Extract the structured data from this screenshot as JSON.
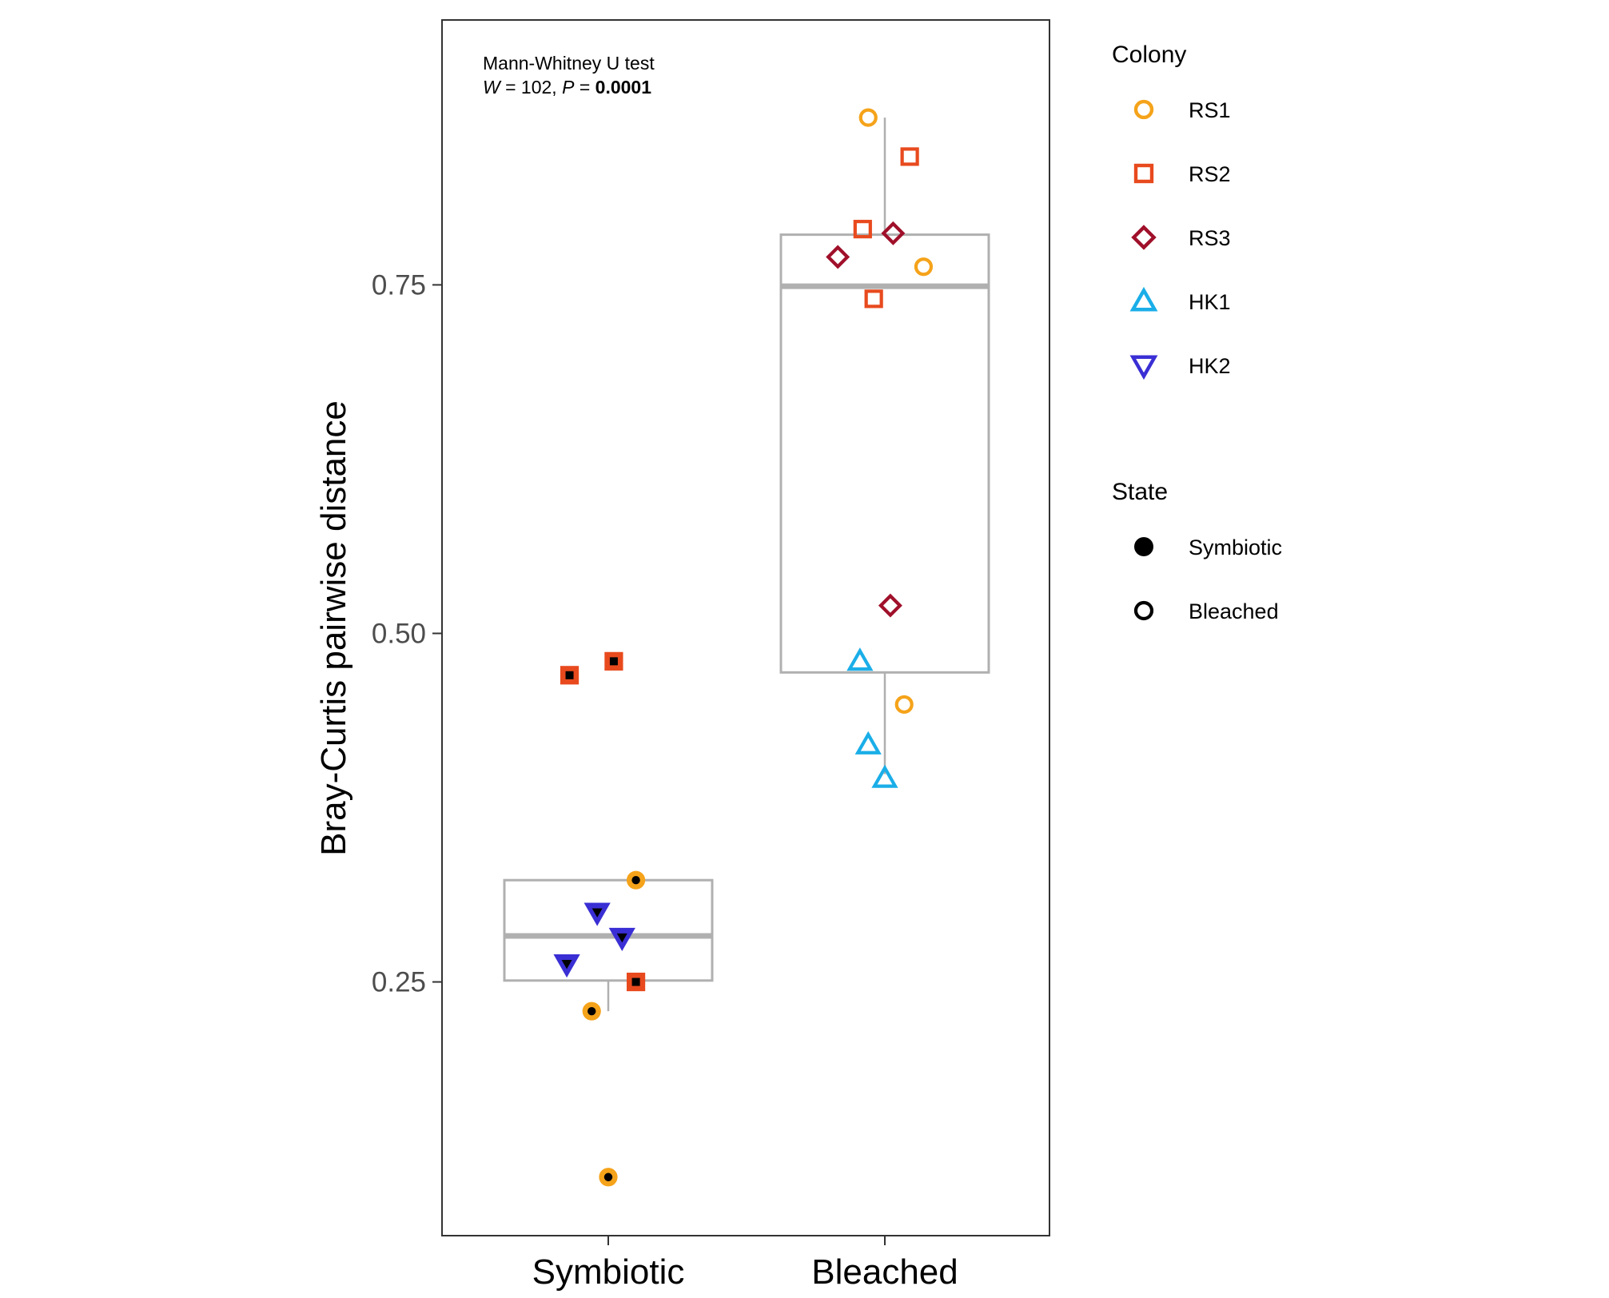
{
  "colors": {
    "RS1": "#F5A31A",
    "RS2": "#E84A1E",
    "RS3": "#A0102A",
    "HK1": "#1AAEE8",
    "HK2": "#3A2FD4",
    "box": "#b0b0b0",
    "axis": "#333333"
  },
  "chart_data": {
    "type": "scatter",
    "subtype": "boxplot-with-jittered-points",
    "ylabel": "Bray-Curtis pairwise distance",
    "xlabel": "",
    "categories": [
      "Symbiotic",
      "Bleached"
    ],
    "ylim": [
      0.068,
      0.94
    ],
    "yticks": [
      0.25,
      0.5,
      0.75
    ],
    "ytick_labels": [
      "0.25",
      "0.50",
      "0.75"
    ],
    "grid": false,
    "annotation": {
      "line1": "Mann-Whitney U test",
      "stat_name": "W",
      "stat_eq": " = 102, ",
      "p_name": "P",
      "p_eq": " = ",
      "p_value": "0.0001"
    },
    "boxes": [
      {
        "category": "Symbiotic",
        "whisker_low": 0.229,
        "q1": 0.251,
        "median": 0.283,
        "q3": 0.323,
        "whisker_high": 0.323
      },
      {
        "category": "Bleached",
        "whisker_low": 0.399,
        "q1": 0.472,
        "median": 0.749,
        "q3": 0.786,
        "whisker_high": 0.87
      }
    ],
    "points": [
      {
        "category": "Symbiotic",
        "colony": "RS2",
        "jitter": -0.14,
        "y": 0.47
      },
      {
        "category": "Symbiotic",
        "colony": "RS2",
        "jitter": 0.02,
        "y": 0.48
      },
      {
        "category": "Symbiotic",
        "colony": "RS1",
        "jitter": 0.1,
        "y": 0.323
      },
      {
        "category": "Symbiotic",
        "colony": "HK2",
        "jitter": -0.04,
        "y": 0.3
      },
      {
        "category": "Symbiotic",
        "colony": "HK2",
        "jitter": 0.05,
        "y": 0.282
      },
      {
        "category": "Symbiotic",
        "colony": "HK2",
        "jitter": -0.15,
        "y": 0.263
      },
      {
        "category": "Symbiotic",
        "colony": "RS2",
        "jitter": 0.1,
        "y": 0.25
      },
      {
        "category": "Symbiotic",
        "colony": "RS1",
        "jitter": -0.06,
        "y": 0.229
      },
      {
        "category": "Symbiotic",
        "colony": "RS1",
        "jitter": 0.0,
        "y": 0.11
      },
      {
        "category": "Bleached",
        "colony": "RS1",
        "jitter": -0.06,
        "y": 0.87
      },
      {
        "category": "Bleached",
        "colony": "RS2",
        "jitter": 0.09,
        "y": 0.842
      },
      {
        "category": "Bleached",
        "colony": "RS2",
        "jitter": -0.08,
        "y": 0.79
      },
      {
        "category": "Bleached",
        "colony": "RS3",
        "jitter": 0.03,
        "y": 0.787
      },
      {
        "category": "Bleached",
        "colony": "RS3",
        "jitter": -0.17,
        "y": 0.77
      },
      {
        "category": "Bleached",
        "colony": "RS1",
        "jitter": 0.14,
        "y": 0.763
      },
      {
        "category": "Bleached",
        "colony": "RS2",
        "jitter": -0.04,
        "y": 0.74
      },
      {
        "category": "Bleached",
        "colony": "RS3",
        "jitter": 0.02,
        "y": 0.52
      },
      {
        "category": "Bleached",
        "colony": "HK1",
        "jitter": -0.09,
        "y": 0.48
      },
      {
        "category": "Bleached",
        "colony": "RS1",
        "jitter": 0.07,
        "y": 0.449
      },
      {
        "category": "Bleached",
        "colony": "HK1",
        "jitter": -0.06,
        "y": 0.42
      },
      {
        "category": "Bleached",
        "colony": "HK1",
        "jitter": 0.0,
        "y": 0.396
      }
    ]
  },
  "legend": {
    "colony_title": "Colony",
    "colony_items": [
      {
        "label": "RS1",
        "shape": "circle"
      },
      {
        "label": "RS2",
        "shape": "square"
      },
      {
        "label": "RS3",
        "shape": "diamond"
      },
      {
        "label": "HK1",
        "shape": "triangle-up"
      },
      {
        "label": "HK2",
        "shape": "triangle-down"
      }
    ],
    "state_title": "State",
    "state_items": [
      {
        "label": "Symbiotic",
        "fill": "filled"
      },
      {
        "label": "Bleached",
        "fill": "open"
      }
    ]
  }
}
